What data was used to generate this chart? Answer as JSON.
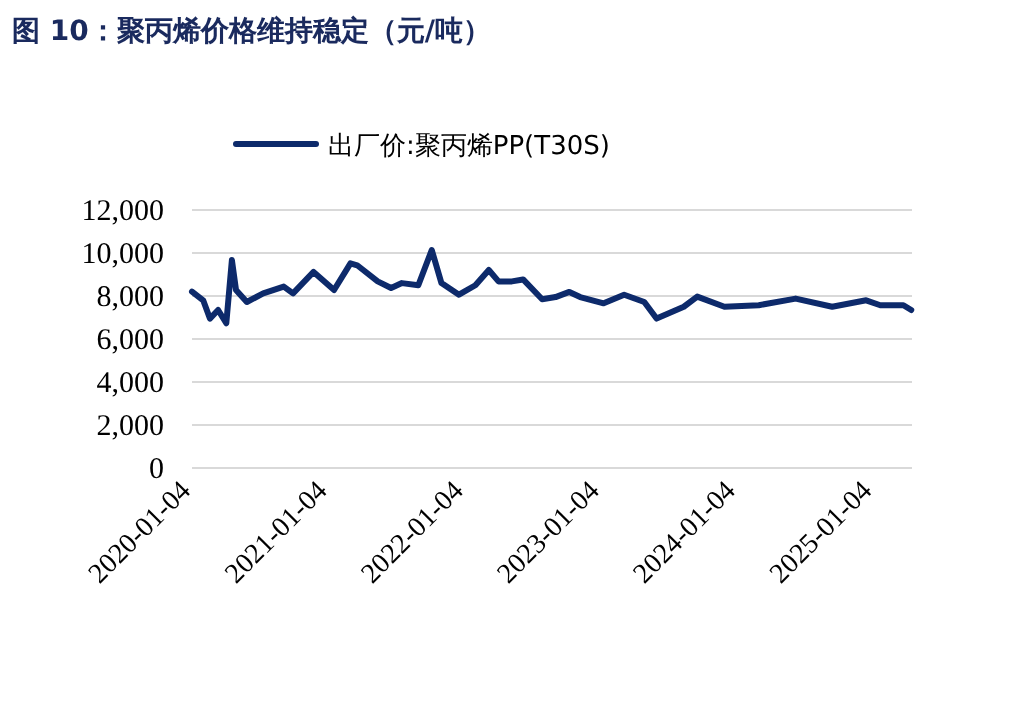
{
  "chart_data": {
    "type": "line",
    "title": "图 10：聚丙烯价格维持稳定（元/吨）",
    "x": [
      "2020-01-04",
      "2020-02-03",
      "2020-02-21",
      "2020-03-14",
      "2020-04-05",
      "2020-04-20",
      "2020-05-01",
      "2020-05-30",
      "2020-07-13",
      "2020-09-06",
      "2020-10-01",
      "2020-11-25",
      "2021-01-19",
      "2021-03-04",
      "2021-03-22",
      "2021-05-16",
      "2021-06-21",
      "2021-07-20",
      "2021-09-02",
      "2021-10-08",
      "2021-11-03",
      "2021-12-20",
      "2022-02-02",
      "2022-03-10",
      "2022-04-05",
      "2022-05-11",
      "2022-06-10",
      "2022-07-31",
      "2022-09-05",
      "2022-10-12",
      "2022-11-10",
      "2023-01-12",
      "2023-03-08",
      "2023-05-01",
      "2023-06-03",
      "2023-08-15",
      "2023-09-20",
      "2023-12-02",
      "2024-03-03",
      "2024-06-10",
      "2024-09-16",
      "2024-12-16",
      "2025-01-23",
      "2025-03-26",
      "2025-04-16"
    ],
    "series": [
      {
        "name": "出厂价:聚丙烯PP(T30S)",
        "color": "#0d2a6b",
        "values": [
          8200,
          7800,
          6950,
          7350,
          6730,
          9670,
          8280,
          7720,
          8120,
          8440,
          8120,
          9120,
          8280,
          9520,
          9430,
          8680,
          8370,
          8600,
          8500,
          10140,
          8600,
          8060,
          8500,
          9210,
          8680,
          8680,
          8770,
          7850,
          7950,
          8190,
          7950,
          7660,
          8060,
          7720,
          6950,
          7500,
          7970,
          7500,
          7570,
          7880,
          7500,
          7800,
          7570,
          7570,
          7350
        ]
      }
    ],
    "xlim": [
      "2020-01-04",
      "2025-04-18"
    ],
    "xticks": [
      "2020-01-04",
      "2021-01-04",
      "2022-01-04",
      "2023-01-04",
      "2024-01-04",
      "2025-01-04"
    ],
    "ylim": [
      0,
      12000
    ],
    "yticks": [
      {
        "value": 0,
        "label": "0"
      },
      {
        "value": 2000,
        "label": "2,000"
      },
      {
        "value": 4000,
        "label": "4,000"
      },
      {
        "value": 6000,
        "label": "6,000"
      },
      {
        "value": 8000,
        "label": "8,000"
      },
      {
        "value": 10000,
        "label": "10,000"
      },
      {
        "value": 12000,
        "label": "12,000"
      }
    ],
    "grid": "y",
    "legend": "top",
    "line_style": "solid",
    "marker": "none"
  }
}
